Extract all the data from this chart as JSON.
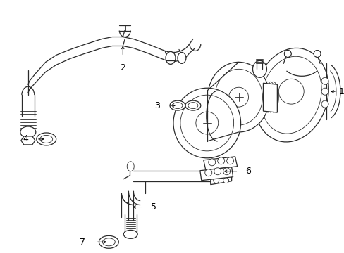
{
  "bg_color": "#ffffff",
  "line_color": "#2a2a2a",
  "font_size": 9,
  "label_color": "#000000",
  "fig_w": 4.89,
  "fig_h": 3.6,
  "dpi": 100
}
